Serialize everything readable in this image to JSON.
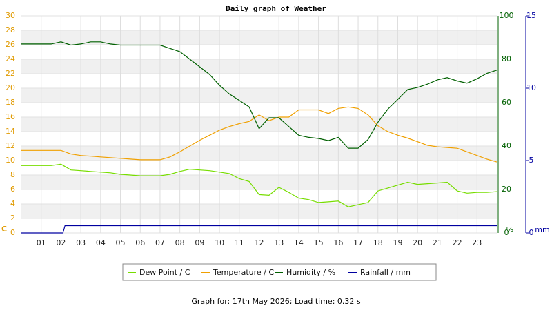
{
  "chart_data": {
    "type": "line",
    "title": "Daily graph of Weather",
    "x": [
      0,
      0.5,
      1,
      1.5,
      2,
      2.5,
      3,
      3.5,
      4,
      4.5,
      5,
      5.5,
      6,
      6.5,
      7,
      7.5,
      8,
      8.5,
      9,
      9.5,
      10,
      10.5,
      11,
      11.5,
      12,
      12.5,
      13,
      13.5,
      14,
      14.5,
      15,
      15.5,
      16,
      16.5,
      17,
      17.5,
      18,
      18.5,
      19,
      19.5,
      20,
      20.5,
      21,
      21.5,
      22,
      22.5,
      23,
      23.5,
      24
    ],
    "xlim": [
      0,
      24
    ],
    "xticks": [
      {
        "value": 1,
        "label": "01"
      },
      {
        "value": 2,
        "label": "02"
      },
      {
        "value": 3,
        "label": "03"
      },
      {
        "value": 4,
        "label": "04"
      },
      {
        "value": 5,
        "label": "05"
      },
      {
        "value": 6,
        "label": "06"
      },
      {
        "value": 7,
        "label": "07"
      },
      {
        "value": 8,
        "label": "08"
      },
      {
        "value": 9,
        "label": "09"
      },
      {
        "value": 10,
        "label": "10"
      },
      {
        "value": 11,
        "label": "11"
      },
      {
        "value": 12,
        "label": "12"
      },
      {
        "value": 13,
        "label": "13"
      },
      {
        "value": 14,
        "label": "14"
      },
      {
        "value": 15,
        "label": "15"
      },
      {
        "value": 16,
        "label": "16"
      },
      {
        "value": 17,
        "label": "17"
      },
      {
        "value": 18,
        "label": "18"
      },
      {
        "value": 19,
        "label": "19"
      },
      {
        "value": 20,
        "label": "20"
      },
      {
        "value": 21,
        "label": "21"
      },
      {
        "value": 22,
        "label": "22"
      },
      {
        "value": 23,
        "label": "23"
      }
    ],
    "ylim": [
      0,
      30
    ],
    "yticks": [
      0,
      2,
      4,
      6,
      8,
      10,
      12,
      14,
      16,
      18,
      20,
      22,
      24,
      26,
      28,
      30
    ],
    "ylabel": "C",
    "ycolor": "#e09a00",
    "y2lim": [
      0,
      100
    ],
    "y2ticks": [
      0,
      20,
      40,
      60,
      80,
      100
    ],
    "y2label": "%",
    "y2color": "#006000",
    "y3lim": [
      0,
      15
    ],
    "y3ticks": [
      0,
      5,
      10,
      15
    ],
    "y3label": "mm",
    "y3color": "#0000a0",
    "grid": true,
    "series": [
      {
        "name": "Dew Point / C",
        "color": "#77dd00",
        "axis": "y",
        "values": [
          9.3,
          9.3,
          9.3,
          9.3,
          9.5,
          8.7,
          8.6,
          8.5,
          8.4,
          8.3,
          8.1,
          8.0,
          7.9,
          7.9,
          7.9,
          8.1,
          8.5,
          8.8,
          8.7,
          8.6,
          8.4,
          8.2,
          7.5,
          7.1,
          5.3,
          5.2,
          6.3,
          5.6,
          4.8,
          4.6,
          4.2,
          4.3,
          4.4,
          3.6,
          3.9,
          4.2,
          5.8,
          6.2,
          6.6,
          7.0,
          6.7,
          6.8,
          6.9,
          7.0,
          5.8,
          5.5,
          5.6,
          5.6,
          5.7
        ]
      },
      {
        "name": "Temperature / C",
        "color": "#f0a000",
        "axis": "y",
        "values": [
          11.4,
          11.4,
          11.4,
          11.4,
          11.4,
          10.9,
          10.7,
          10.6,
          10.5,
          10.4,
          10.3,
          10.2,
          10.1,
          10.1,
          10.1,
          10.5,
          11.2,
          12.0,
          12.8,
          13.5,
          14.2,
          14.7,
          15.1,
          15.4,
          16.3,
          15.5,
          16.0,
          16.0,
          17.0,
          17.0,
          17.0,
          16.5,
          17.2,
          17.4,
          17.2,
          16.3,
          14.8,
          14.0,
          13.5,
          13.1,
          12.6,
          12.1,
          11.9,
          11.8,
          11.7,
          11.2,
          10.7,
          10.2,
          9.8
        ]
      },
      {
        "name": "Humidity / %",
        "color": "#006000",
        "axis": "y2",
        "values": [
          87,
          87,
          87,
          87,
          88,
          86.5,
          87,
          88,
          88,
          87,
          86.5,
          86.5,
          86.5,
          86.5,
          86.5,
          85,
          83.5,
          80,
          76.5,
          73,
          68,
          64,
          61,
          58,
          48,
          53,
          53,
          49,
          45,
          44,
          43.5,
          42.5,
          44,
          39,
          39,
          43,
          51,
          57,
          61.5,
          66,
          67,
          68.5,
          70.5,
          71.5,
          70,
          69,
          71,
          73.5,
          75
        ]
      },
      {
        "name": "Rainfall / mm",
        "color": "#0000a0",
        "axis": "y3",
        "x": [
          0,
          2.1,
          2.2,
          24
        ],
        "values": [
          0,
          0,
          0.5,
          0.5
        ]
      }
    ],
    "footer": "Graph for: 17th May 2026; Load time: 0.32 s"
  }
}
